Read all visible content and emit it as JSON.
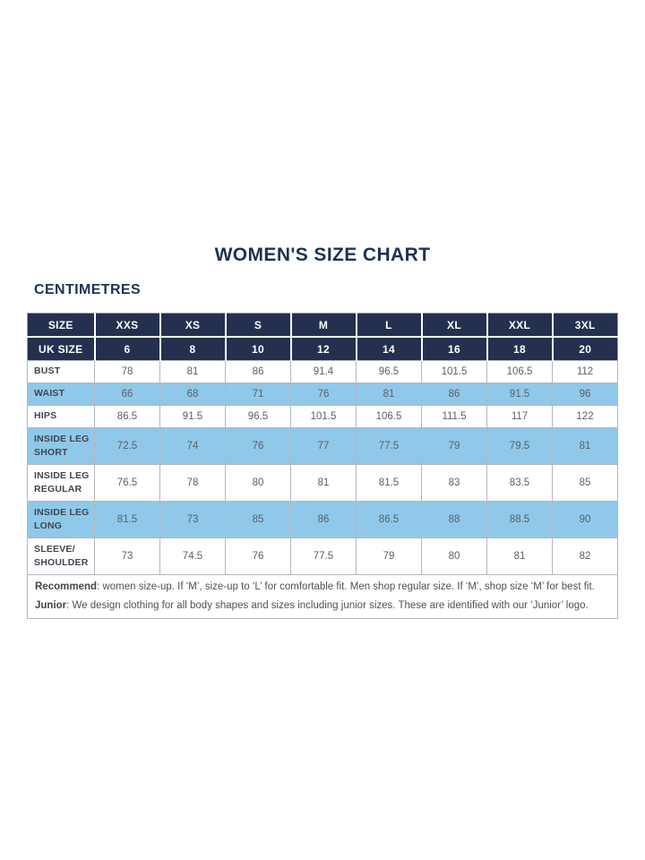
{
  "page": {
    "title": "WOMEN'S SIZE CHART",
    "unit_heading": "CENTIMETRES"
  },
  "colors": {
    "navy": "#24304e",
    "light_blue": "#8fc8e9",
    "title_text": "#1f3253",
    "label_text": "#41464e",
    "value_text": "#5a6168",
    "note_text": "#4c525a",
    "grid": "#b3b8bf",
    "border": "#9ba1a9"
  },
  "chart_data": {
    "type": "table",
    "header_rows": [
      {
        "label": "SIZE",
        "values": [
          "XXS",
          "XS",
          "S",
          "M",
          "L",
          "XL",
          "XXL",
          "3XL"
        ]
      },
      {
        "label": "UK SIZE",
        "values": [
          "6",
          "8",
          "10",
          "12",
          "14",
          "16",
          "18",
          "20"
        ]
      }
    ],
    "rows": [
      {
        "label_lines": [
          "BUST"
        ],
        "highlight": false,
        "values": [
          "78",
          "81",
          "86",
          "91.4",
          "96.5",
          "101.5",
          "106.5",
          "112"
        ]
      },
      {
        "label_lines": [
          "WAIST"
        ],
        "highlight": true,
        "values": [
          "66",
          "68",
          "71",
          "76",
          "81",
          "86",
          "91.5",
          "96"
        ]
      },
      {
        "label_lines": [
          "HIPS"
        ],
        "highlight": false,
        "values": [
          "86.5",
          "91.5",
          "96.5",
          "101.5",
          "106.5",
          "111.5",
          "117",
          "122"
        ]
      },
      {
        "label_lines": [
          "INSIDE LEG",
          "SHORT"
        ],
        "highlight": true,
        "values": [
          "72.5",
          "74",
          "76",
          "77",
          "77.5",
          "79",
          "79.5",
          "81"
        ]
      },
      {
        "label_lines": [
          "INSIDE LEG",
          "REGULAR"
        ],
        "highlight": false,
        "values": [
          "76.5",
          "78",
          "80",
          "81",
          "81.5",
          "83",
          "83.5",
          "85"
        ]
      },
      {
        "label_lines": [
          "INSIDE LEG",
          "LONG"
        ],
        "highlight": true,
        "values": [
          "81.5",
          "73",
          "85",
          "86",
          "86.5",
          "88",
          "88.5",
          "90"
        ]
      },
      {
        "label_lines": [
          "SLEEVE/",
          "SHOULDER"
        ],
        "highlight": false,
        "values": [
          "73",
          "74.5",
          "76",
          "77.5",
          "79",
          "80",
          "81",
          "82"
        ]
      }
    ],
    "notes": [
      {
        "label": "Recommend",
        "text": ": women size-up. If ‘M’, size-up to ‘L’ for comfortable fit. Men shop regular size. If ‘M’, shop size ‘M’ for best fit."
      },
      {
        "label": "Junior",
        "text": ": We design clothing for all body shapes and sizes including junior sizes. These are identified with our ‘Junior’ logo."
      }
    ]
  }
}
